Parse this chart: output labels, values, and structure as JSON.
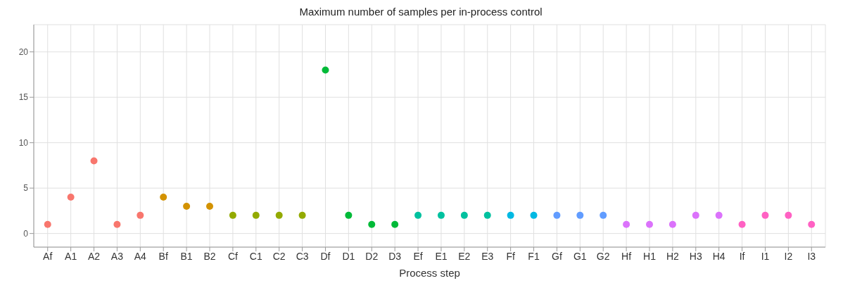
{
  "chart_data": {
    "type": "scatter",
    "title": "Maximum number of samples per in-process control",
    "xlabel": "Process step",
    "categories": [
      "Af",
      "A1",
      "A2",
      "A3",
      "A4",
      "Bf",
      "B1",
      "B2",
      "Cf",
      "C1",
      "C2",
      "C3",
      "Df",
      "D1",
      "D2",
      "D3",
      "Ef",
      "E1",
      "E2",
      "E3",
      "Ff",
      "F1",
      "Gf",
      "G1",
      "G2",
      "Hf",
      "H1",
      "H2",
      "H3",
      "H4",
      "If",
      "I1",
      "I2",
      "I3"
    ],
    "values": [
      1,
      4,
      8,
      1,
      2,
      4,
      3,
      3,
      2,
      2,
      2,
      2,
      18,
      2,
      1,
      1,
      2,
      2,
      2,
      2,
      2,
      2,
      2,
      2,
      2,
      1,
      1,
      1,
      2,
      2,
      1,
      2,
      2,
      1
    ],
    "colors": [
      "#f8766d",
      "#f8766d",
      "#f8766d",
      "#f8766d",
      "#f8766d",
      "#d39200",
      "#d39200",
      "#d39200",
      "#93aa00",
      "#93aa00",
      "#93aa00",
      "#93aa00",
      "#00ba38",
      "#00ba38",
      "#00ba38",
      "#00ba38",
      "#00c19f",
      "#00c19f",
      "#00c19f",
      "#00c19f",
      "#00b9e3",
      "#00b9e3",
      "#619cff",
      "#619cff",
      "#619cff",
      "#db72fb",
      "#db72fb",
      "#db72fb",
      "#db72fb",
      "#db72fb",
      "#ff61c3",
      "#ff61c3",
      "#ff61c3",
      "#ff61c3"
    ],
    "ylim": [
      -1.5,
      23
    ],
    "yticks": [
      0,
      5,
      10,
      15,
      20
    ],
    "grid": true,
    "marker": "circle"
  }
}
